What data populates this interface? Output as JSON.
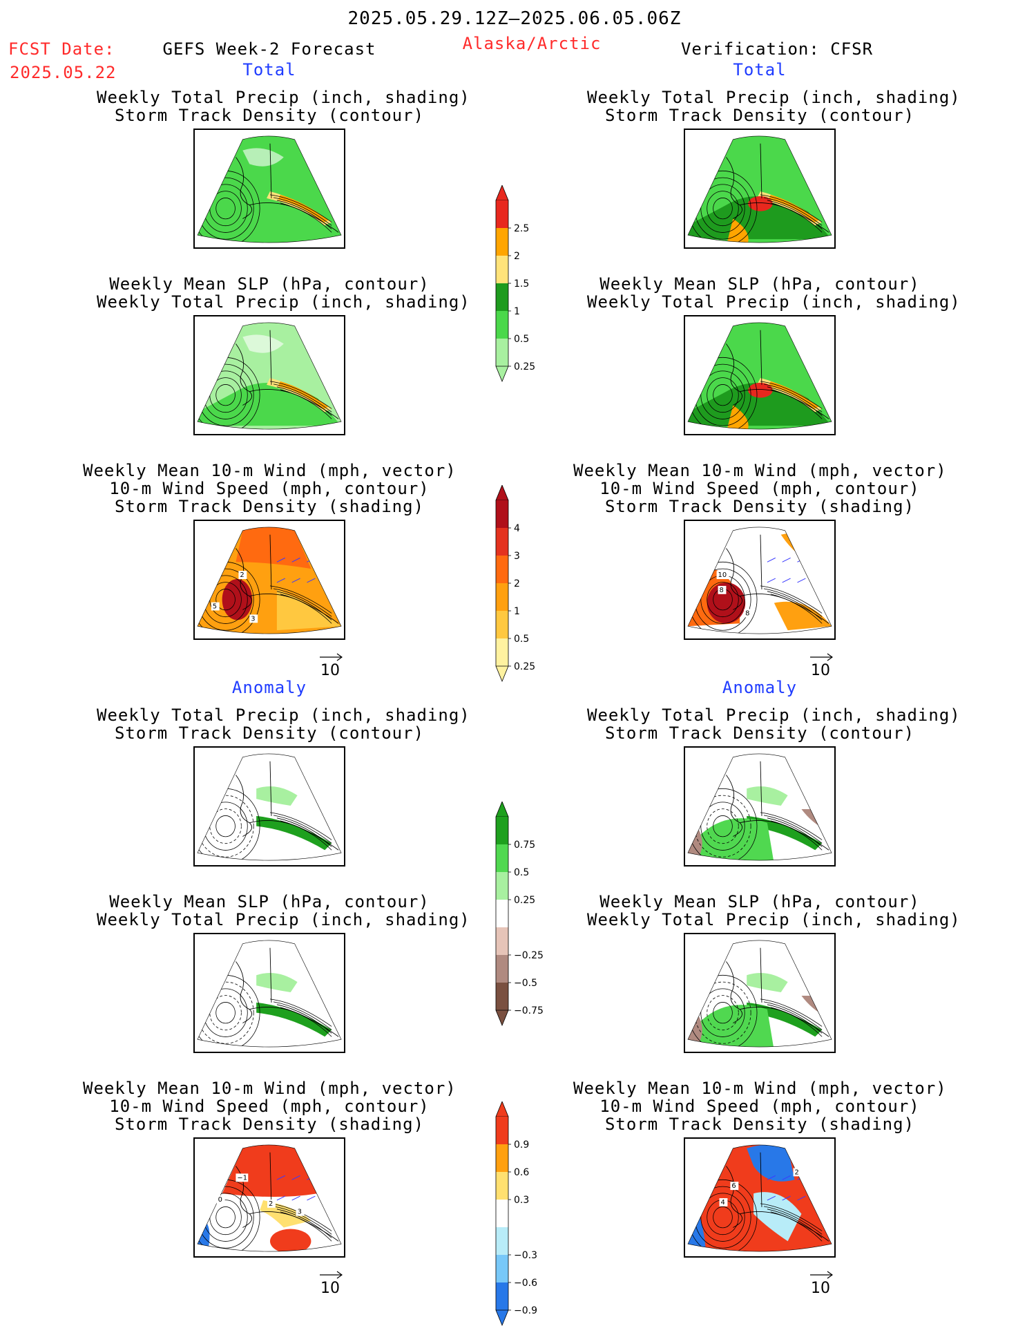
{
  "header": {
    "period": "2025.05.29.12Z–2025.06.05.06Z",
    "fcst_label": "FCST Date:",
    "fcst_date": "2025.05.22",
    "model": "GEFS Week-2 Forecast",
    "region": "Alaska/Arctic",
    "verification": "Verification: CFSR"
  },
  "sections": {
    "total": "Total",
    "anomaly": "Anomaly"
  },
  "titles": {
    "precip_track": [
      "Weekly Total Precip (inch, shading)",
      "Storm Track Density (contour)"
    ],
    "slp_precip": [
      "Weekly Mean SLP (hPa, contour)",
      "Weekly Total Precip (inch, shading)"
    ],
    "wind_track": [
      "Weekly Mean 10-m Wind (mph, vector)",
      "10-m Wind Speed (mph, contour)",
      "Storm Track Density (shading)"
    ]
  },
  "vector_ref": "10",
  "colorbars": {
    "precip_total": {
      "labels": [
        "2.5",
        "2",
        "1.5",
        "1",
        "0.5",
        "0.25"
      ],
      "colors": [
        "#e8281e",
        "#ffa500",
        "#ffe37a",
        "#1e9b1e",
        "#4bd84b",
        "#a8f0a0"
      ]
    },
    "track_total": {
      "labels": [
        "4",
        "3",
        "2",
        "1",
        "0.5",
        "0.25"
      ],
      "colors": [
        "#b0101a",
        "#e4321e",
        "#ff6a10",
        "#ffa010",
        "#ffc840",
        "#fff2a0"
      ]
    },
    "precip_anom": {
      "labels": [
        "0.75",
        "0.5",
        "0.25",
        "−0.25",
        "−0.5",
        "−0.75"
      ],
      "colors": [
        "#1ea01e",
        "#50d850",
        "#a8f0a0",
        "#ffffff",
        "#e6c4b8",
        "#b08a80",
        "#7a5040"
      ]
    },
    "track_anom": {
      "labels": [
        "0.9",
        "0.6",
        "0.3",
        "−0.3",
        "−0.6",
        "−0.9"
      ],
      "colors": [
        "#f03c1c",
        "#ffa010",
        "#ffe070",
        "#ffffff",
        "#b8ecf8",
        "#78c8f8",
        "#2878e8"
      ]
    }
  },
  "map_labels": {
    "l_wind_total": [
      "2",
      "5",
      "3"
    ],
    "r_wind_total": [
      "10",
      "8",
      "8"
    ],
    "l_wind_anom": [
      "−1",
      "0",
      "2",
      "3"
    ],
    "r_wind_anom": [
      "2",
      "6",
      "4"
    ]
  }
}
